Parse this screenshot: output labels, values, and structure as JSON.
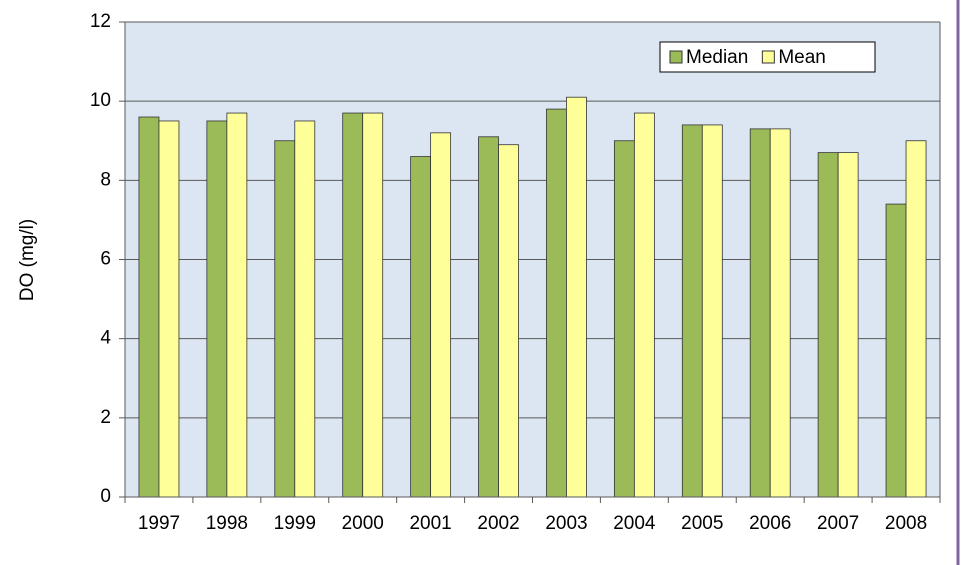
{
  "chart_data": {
    "type": "bar",
    "y_label": "DO (mg/l)",
    "categories": [
      "1997",
      "1998",
      "1999",
      "2000",
      "2001",
      "2002",
      "2003",
      "2004",
      "2005",
      "2006",
      "2007",
      "2008"
    ],
    "series": [
      {
        "name": "Median",
        "color": "#9bbb59",
        "values": [
          9.6,
          9.5,
          9.0,
          9.7,
          8.6,
          9.1,
          9.8,
          9.0,
          9.4,
          9.3,
          8.7,
          7.4
        ]
      },
      {
        "name": "Mean",
        "color": "#ffff99",
        "values": [
          9.5,
          9.7,
          9.5,
          9.7,
          9.2,
          8.9,
          10.1,
          9.7,
          9.4,
          9.3,
          8.7,
          9.0
        ]
      }
    ],
    "ylim": [
      0,
      12
    ],
    "yticks": [
      0,
      2,
      4,
      6,
      8,
      10,
      12
    ],
    "grid": true,
    "legend": "upper right"
  }
}
